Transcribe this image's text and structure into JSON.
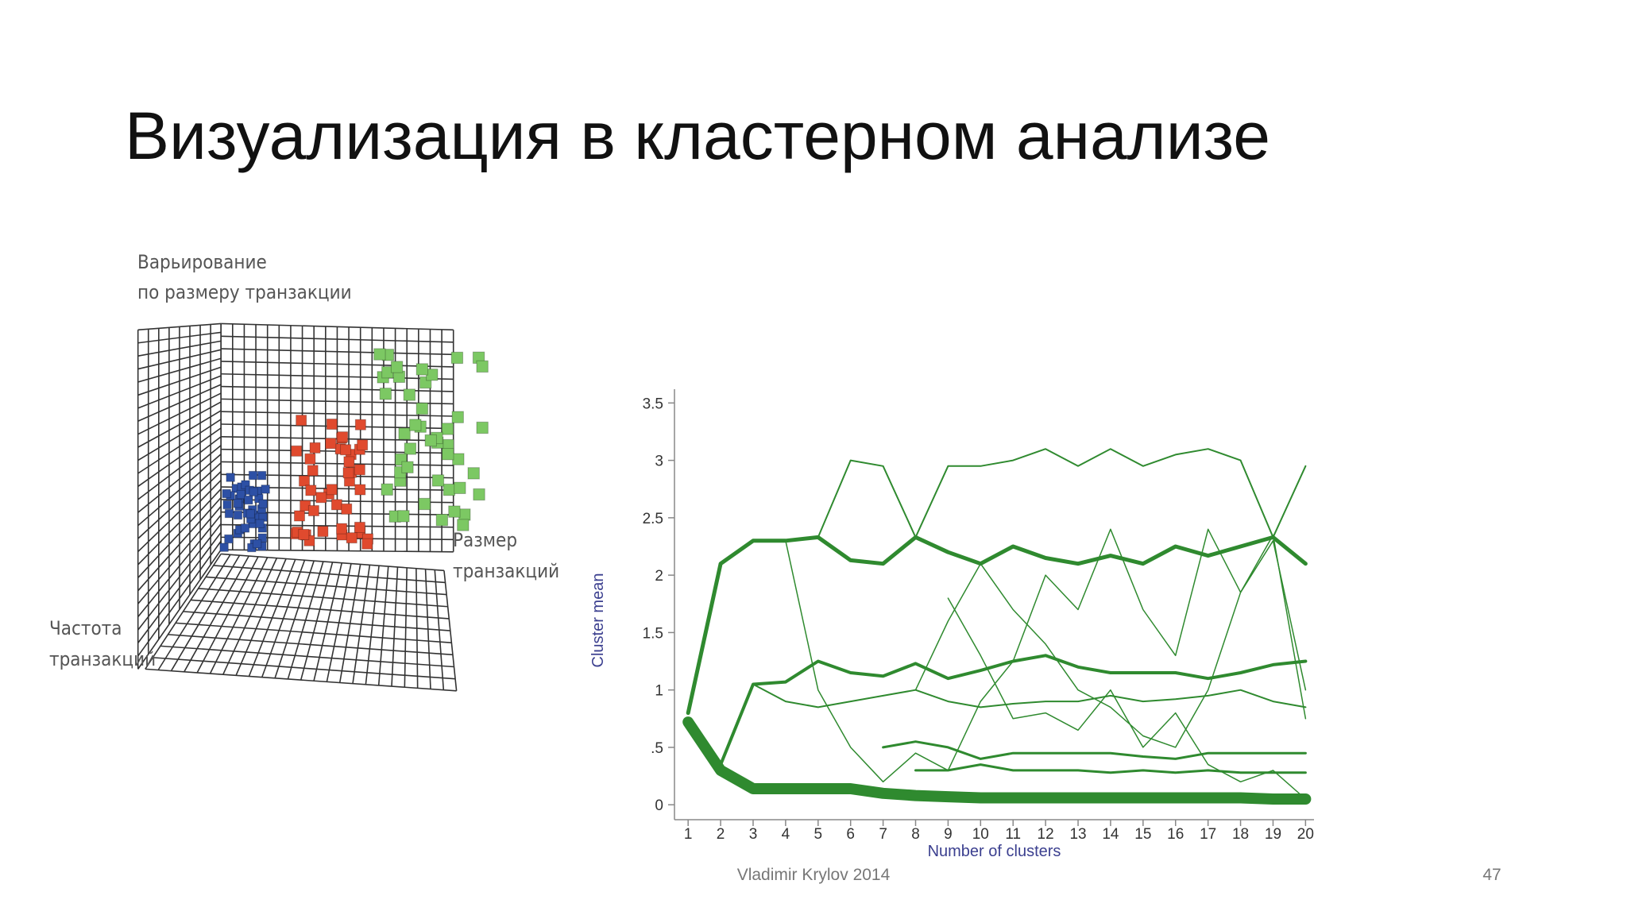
{
  "title": "Визуализация в кластерном анализе",
  "figure_labels": {
    "z_axis": [
      "Варьирование",
      "по размеру транзакции"
    ],
    "x_axis": [
      "Размер",
      "транзакций"
    ],
    "y_axis": [
      "Частота",
      "транзакций"
    ]
  },
  "footer": {
    "author": "Vladimir Krylov 2014",
    "page": "47"
  },
  "chart_data": {
    "type": "line",
    "xlabel": "Number of clusters",
    "ylabel": "Cluster mean",
    "x": [
      1,
      2,
      3,
      4,
      5,
      6,
      7,
      8,
      9,
      10,
      11,
      12,
      13,
      14,
      15,
      16,
      17,
      18,
      19,
      20
    ],
    "xlim": [
      0.58,
      20.26
    ],
    "xticks": [
      1,
      2,
      3,
      4,
      5,
      6,
      7,
      8,
      9,
      10,
      11,
      12,
      13,
      14,
      15,
      16,
      17,
      18,
      19,
      20
    ],
    "ylim": [
      -0.13,
      3.62
    ],
    "yticks": [
      0,
      {
        "value": 0.5,
        "label": ".5"
      },
      1,
      1.5,
      2,
      2.5,
      3,
      3.5
    ],
    "series": [
      {
        "color": "#2f8a2f",
        "width": 14,
        "values": [
          0.72,
          0.3,
          0.14,
          0.14,
          0.14,
          0.14,
          0.1,
          0.08,
          0.07,
          0.06,
          0.06,
          0.06,
          0.06,
          0.06,
          0.06,
          0.06,
          0.06,
          0.06,
          0.05,
          0.05
        ]
      },
      {
        "color": "#2f8a2f",
        "width": 5,
        "values": [
          0.8,
          2.1,
          2.3,
          2.3,
          2.33,
          2.13,
          2.1,
          2.33,
          2.2,
          2.1,
          2.25,
          2.15,
          2.1,
          2.17,
          2.1,
          2.25,
          2.17,
          2.25,
          2.33,
          2.1
        ]
      },
      {
        "color": "#2f8a2f",
        "width": 4,
        "values": [
          null,
          0.35,
          1.05,
          1.07,
          1.25,
          1.15,
          1.12,
          1.23,
          1.1,
          1.17,
          1.25,
          1.3,
          1.2,
          1.15,
          1.15,
          1.15,
          1.1,
          1.15,
          1.22,
          1.25
        ]
      },
      {
        "color": "#2f8a2f",
        "width": 2,
        "values": [
          null,
          null,
          null,
          null,
          2.33,
          3.0,
          2.95,
          2.33,
          2.95,
          2.95,
          3.0,
          3.1,
          2.95,
          3.1,
          2.95,
          3.05,
          3.1,
          3.0,
          2.33,
          2.95
        ]
      },
      {
        "color": "#2f8a2f",
        "width": 2,
        "values": [
          null,
          null,
          1.05,
          0.9,
          0.85,
          0.9,
          0.95,
          1.0,
          0.9,
          0.85,
          0.88,
          0.9,
          0.9,
          0.95,
          0.9,
          0.92,
          0.95,
          1.0,
          0.9,
          0.85
        ]
      },
      {
        "color": "#2f8a2f",
        "width": 3,
        "values": [
          null,
          null,
          null,
          null,
          null,
          null,
          0.5,
          0.55,
          0.5,
          0.4,
          0.45,
          0.45,
          0.45,
          0.45,
          0.42,
          0.4,
          0.45,
          0.45,
          0.45,
          0.45
        ]
      },
      {
        "color": "#2f8a2f",
        "width": 3,
        "values": [
          null,
          null,
          null,
          null,
          null,
          null,
          null,
          0.3,
          0.3,
          0.35,
          0.3,
          0.3,
          0.3,
          0.28,
          0.3,
          0.28,
          0.3,
          0.28,
          0.28,
          0.28
        ]
      },
      {
        "color": "#2f8a2f",
        "width": 1.5,
        "values": [
          null,
          null,
          null,
          null,
          null,
          null,
          null,
          1.0,
          1.6,
          2.1,
          1.7,
          1.4,
          1.0,
          0.85,
          0.6,
          0.5,
          1.0,
          1.85,
          2.3,
          1.0
        ]
      },
      {
        "color": "#2f8a2f",
        "width": 1.5,
        "values": [
          null,
          null,
          null,
          null,
          null,
          null,
          null,
          null,
          1.8,
          1.3,
          0.75,
          0.8,
          0.65,
          1.0,
          0.5,
          0.8,
          0.35,
          0.2,
          0.3,
          0.05
        ]
      },
      {
        "color": "#2f8a2f",
        "width": 1.5,
        "values": [
          null,
          null,
          null,
          2.3,
          1.0,
          0.5,
          0.2,
          0.45,
          0.3,
          0.9,
          1.25,
          2.0,
          1.7,
          2.4,
          1.7,
          1.3,
          2.4,
          1.85,
          2.35,
          0.75
        ]
      }
    ]
  }
}
